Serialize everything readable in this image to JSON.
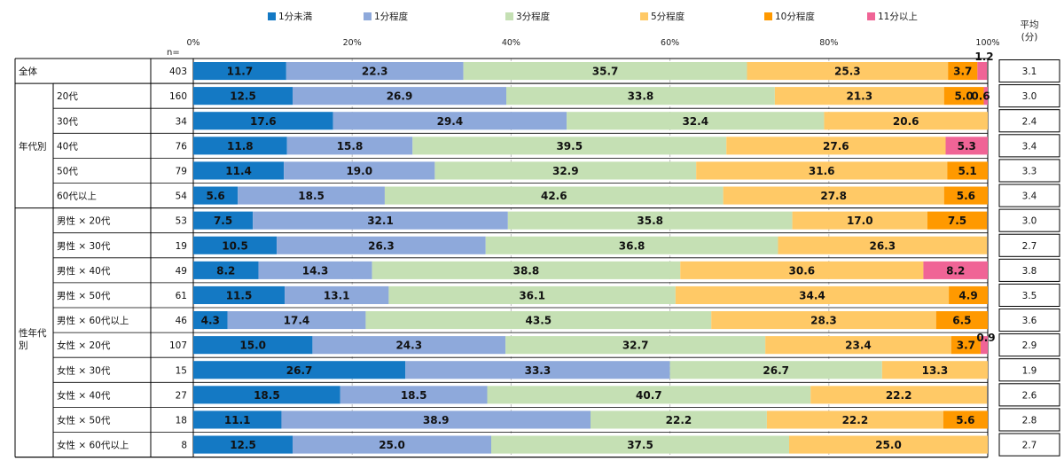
{
  "chart_data": {
    "type": "bar",
    "orientation": "horizontal",
    "stacked": true,
    "percent_stacked": true,
    "n_label": "n=",
    "avg_header": [
      "平均",
      "(分)"
    ],
    "xlim": [
      0,
      100
    ],
    "x_ticks": [
      "0%",
      "20%",
      "40%",
      "60%",
      "80%",
      "100%"
    ],
    "legend_position": "top",
    "series_names": [
      "1分未満",
      "1分程度",
      "3分程度",
      "5分程度",
      "10分程度",
      "11分以上"
    ],
    "colors": [
      "#1479c4",
      "#8ea9db",
      "#c5e0b4",
      "#ffc966",
      "#ff9900",
      "#f06496"
    ],
    "groups": [
      {
        "label": "",
        "rows": [
          0
        ]
      },
      {
        "label": "年代別",
        "rows": [
          1,
          2,
          3,
          4,
          5
        ]
      },
      {
        "label": "性年代別",
        "rows": [
          6,
          7,
          8,
          9,
          10,
          11,
          12,
          13,
          14,
          15
        ]
      }
    ],
    "rows": [
      {
        "label": "全体",
        "n": "403",
        "avg": "3.1",
        "values": [
          11.7,
          22.3,
          35.7,
          25.3,
          3.7,
          1.2
        ],
        "labels": [
          "11.7",
          "22.3",
          "35.7",
          "25.3",
          "3.7",
          "1.2"
        ]
      },
      {
        "label": "20代",
        "n": "160",
        "avg": "3.0",
        "values": [
          12.5,
          26.9,
          33.8,
          21.3,
          5.0,
          0.6
        ],
        "labels": [
          "12.5",
          "26.9",
          "33.8",
          "21.3",
          "5.0",
          "0.6"
        ]
      },
      {
        "label": "30代",
        "n": "34",
        "avg": "2.4",
        "values": [
          17.6,
          29.4,
          32.4,
          20.6,
          0,
          0
        ],
        "labels": [
          "17.6",
          "29.4",
          "32.4",
          "20.6",
          "",
          ""
        ]
      },
      {
        "label": "40代",
        "n": "76",
        "avg": "3.4",
        "values": [
          11.8,
          15.8,
          39.5,
          27.6,
          0,
          5.3
        ],
        "labels": [
          "11.8",
          "15.8",
          "39.5",
          "27.6",
          "",
          "5.3"
        ]
      },
      {
        "label": "50代",
        "n": "79",
        "avg": "3.3",
        "values": [
          11.4,
          19.0,
          32.9,
          31.6,
          5.1,
          0
        ],
        "labels": [
          "11.4",
          "19.0",
          "32.9",
          "31.6",
          "5.1",
          ""
        ]
      },
      {
        "label": "60代以上",
        "n": "54",
        "avg": "3.4",
        "values": [
          5.6,
          18.5,
          42.6,
          27.8,
          5.6,
          0
        ],
        "labels": [
          "5.6",
          "18.5",
          "42.6",
          "27.8",
          "5.6",
          ""
        ]
      },
      {
        "label": "男性 × 20代",
        "n": "53",
        "avg": "3.0",
        "values": [
          7.5,
          32.1,
          35.8,
          17.0,
          7.5,
          0
        ],
        "labels": [
          "7.5",
          "32.1",
          "35.8",
          "17.0",
          "7.5",
          ""
        ]
      },
      {
        "label": "男性 × 30代",
        "n": "19",
        "avg": "2.7",
        "values": [
          10.5,
          26.3,
          36.8,
          26.3,
          0,
          0
        ],
        "labels": [
          "10.5",
          "26.3",
          "36.8",
          "26.3",
          "",
          ""
        ]
      },
      {
        "label": "男性 × 40代",
        "n": "49",
        "avg": "3.8",
        "values": [
          8.2,
          14.3,
          38.8,
          30.6,
          0,
          8.2
        ],
        "labels": [
          "8.2",
          "14.3",
          "38.8",
          "30.6",
          "",
          "8.2"
        ]
      },
      {
        "label": "男性 × 50代",
        "n": "61",
        "avg": "3.5",
        "values": [
          11.5,
          13.1,
          36.1,
          34.4,
          4.9,
          0
        ],
        "labels": [
          "11.5",
          "13.1",
          "36.1",
          "34.4",
          "4.9",
          ""
        ]
      },
      {
        "label": "男性 × 60代以上",
        "n": "46",
        "avg": "3.6",
        "values": [
          4.3,
          17.4,
          43.5,
          28.3,
          6.5,
          0
        ],
        "labels": [
          "4.3",
          "17.4",
          "43.5",
          "28.3",
          "6.5",
          ""
        ]
      },
      {
        "label": "女性 × 20代",
        "n": "107",
        "avg": "2.9",
        "values": [
          15.0,
          24.3,
          32.7,
          23.4,
          3.7,
          0.9
        ],
        "labels": [
          "15.0",
          "24.3",
          "32.7",
          "23.4",
          "3.7",
          "0.9"
        ]
      },
      {
        "label": "女性 × 30代",
        "n": "15",
        "avg": "1.9",
        "values": [
          26.7,
          33.3,
          26.7,
          13.3,
          0,
          0
        ],
        "labels": [
          "26.7",
          "33.3",
          "26.7",
          "13.3",
          "",
          ""
        ]
      },
      {
        "label": "女性 × 40代",
        "n": "27",
        "avg": "2.6",
        "values": [
          18.5,
          18.5,
          40.7,
          22.2,
          0,
          0
        ],
        "labels": [
          "18.5",
          "18.5",
          "40.7",
          "22.2",
          "",
          ""
        ]
      },
      {
        "label": "女性 × 50代",
        "n": "18",
        "avg": "2.8",
        "values": [
          11.1,
          38.9,
          22.2,
          22.2,
          5.6,
          0
        ],
        "labels": [
          "11.1",
          "38.9",
          "22.2",
          "22.2",
          "5.6",
          ""
        ]
      },
      {
        "label": "女性 × 60代以上",
        "n": "8",
        "avg": "2.7",
        "values": [
          12.5,
          25.0,
          37.5,
          25.0,
          0,
          0
        ],
        "labels": [
          "12.5",
          "25.0",
          "37.5",
          "25.0",
          "",
          ""
        ]
      }
    ]
  }
}
